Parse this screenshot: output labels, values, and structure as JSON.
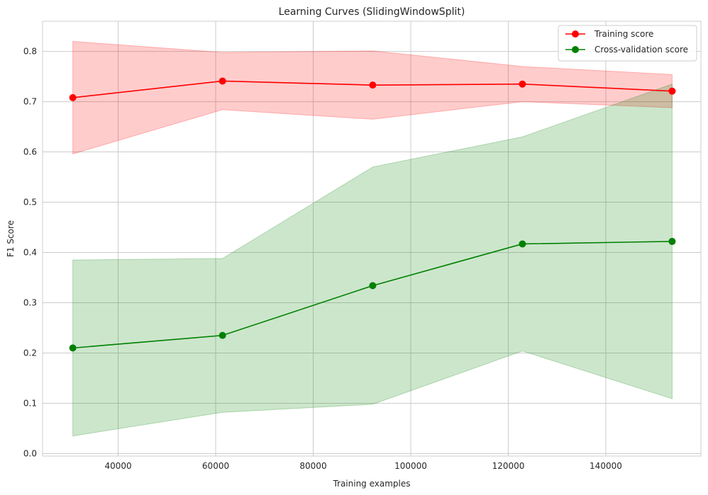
{
  "chart_data": {
    "type": "line",
    "title": "Learning Curves (SlidingWindowSplit)",
    "xlabel": "Training examples",
    "ylabel": "F1 Score",
    "xlim": [
      24500,
      159500
    ],
    "ylim": [
      -0.005,
      0.86
    ],
    "xticks": [
      40000,
      60000,
      80000,
      100000,
      120000,
      140000
    ],
    "yticks": [
      0.0,
      0.1,
      0.2,
      0.3,
      0.4,
      0.5,
      0.6,
      0.7,
      0.8
    ],
    "ytick_labels": [
      "0.0",
      "0.1",
      "0.2",
      "0.3",
      "0.4",
      "0.5",
      "0.6",
      "0.7",
      "0.8"
    ],
    "grid": true,
    "legend_position": "top-right",
    "x": [
      30700,
      61400,
      92200,
      122900,
      153600
    ],
    "series": [
      {
        "name": "Training score",
        "color": "#ff0000",
        "fill_color": "#ff0000",
        "values": [
          0.708,
          0.741,
          0.733,
          0.735,
          0.721
        ],
        "upper": [
          0.82,
          0.798,
          0.801,
          0.77,
          0.754
        ],
        "lower": [
          0.596,
          0.684,
          0.665,
          0.7,
          0.688
        ]
      },
      {
        "name": "Cross-validation score",
        "color": "#008000",
        "fill_color": "#008000",
        "values": [
          0.21,
          0.235,
          0.334,
          0.417,
          0.422
        ],
        "upper": [
          0.385,
          0.388,
          0.57,
          0.63,
          0.735
        ],
        "lower": [
          0.035,
          0.082,
          0.098,
          0.204,
          0.109
        ]
      }
    ]
  }
}
